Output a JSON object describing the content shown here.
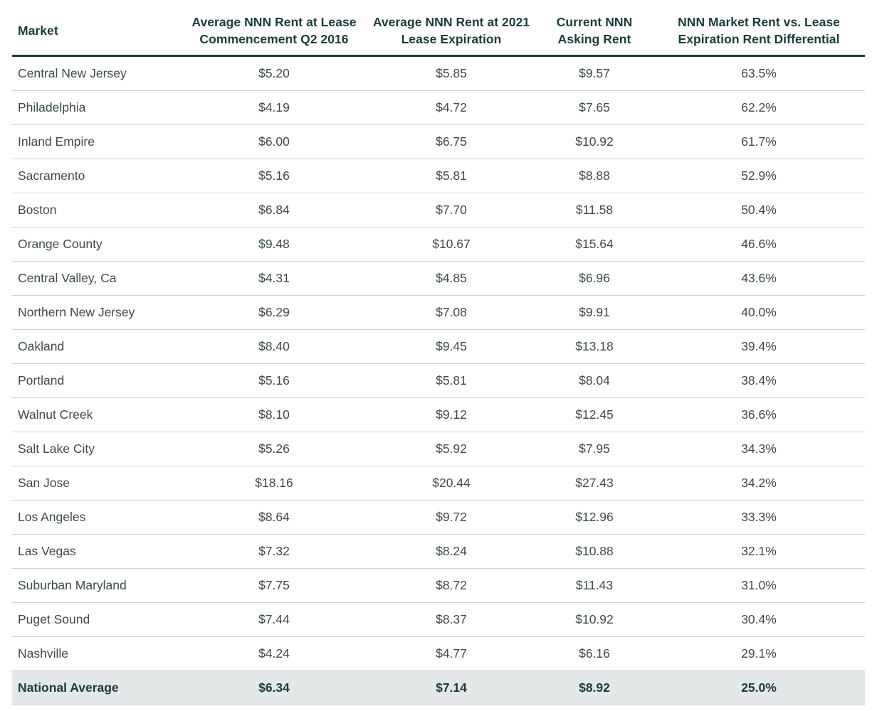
{
  "table": {
    "headers": [
      "Market",
      "Average NNN Rent at Lease Commencement Q2 2016",
      "Average NNN Rent at 2021 Lease Expiration",
      "Current NNN Asking Rent",
      "NNN Market Rent vs. Lease Expiration Rent Differential"
    ],
    "rows": [
      [
        "Central New Jersey",
        "$5.20",
        "$5.85",
        "$9.57",
        "63.5%"
      ],
      [
        "Philadelphia",
        "$4.19",
        "$4.72",
        "$7.65",
        "62.2%"
      ],
      [
        "Inland Empire",
        "$6.00",
        "$6.75",
        "$10.92",
        "61.7%"
      ],
      [
        "Sacramento",
        "$5.16",
        "$5.81",
        "$8.88",
        "52.9%"
      ],
      [
        "Boston",
        "$6.84",
        "$7.70",
        "$11.58",
        "50.4%"
      ],
      [
        "Orange County",
        "$9.48",
        "$10.67",
        "$15.64",
        "46.6%"
      ],
      [
        "Central Valley, Ca",
        "$4.31",
        "$4.85",
        "$6.96",
        "43.6%"
      ],
      [
        "Northern New Jersey",
        "$6.29",
        "$7.08",
        "$9.91",
        "40.0%"
      ],
      [
        "Oakland",
        "$8.40",
        "$9.45",
        "$13.18",
        "39.4%"
      ],
      [
        "Portland",
        "$5.16",
        "$5.81",
        "$8.04",
        "38.4%"
      ],
      [
        "Walnut Creek",
        "$8.10",
        "$9.12",
        "$12.45",
        "36.6%"
      ],
      [
        "Salt Lake City",
        "$5.26",
        "$5.92",
        "$7.95",
        "34.3%"
      ],
      [
        "San Jose",
        "$18.16",
        "$20.44",
        "$27.43",
        "34.2%"
      ],
      [
        "Los Angeles",
        "$8.64",
        "$9.72",
        "$12.96",
        "33.3%"
      ],
      [
        "Las Vegas",
        "$7.32",
        "$8.24",
        "$10.88",
        "32.1%"
      ],
      [
        "Suburban Maryland",
        "$7.75",
        "$8.72",
        "$11.43",
        "31.0%"
      ],
      [
        "Puget Sound",
        "$7.44",
        "$8.37",
        "$10.92",
        "30.4%"
      ],
      [
        "Nashville",
        "$4.24",
        "$4.77",
        "$6.16",
        "29.1%"
      ]
    ],
    "footer": [
      "National Average",
      "$6.34",
      "$7.14",
      "$8.92",
      "25.0%"
    ]
  },
  "colors": {
    "header_text": "#1a3c3a",
    "body_text": "#3f4a4b",
    "row_divider": "#cfd3d3",
    "footer_background": "#e4e8e8"
  }
}
